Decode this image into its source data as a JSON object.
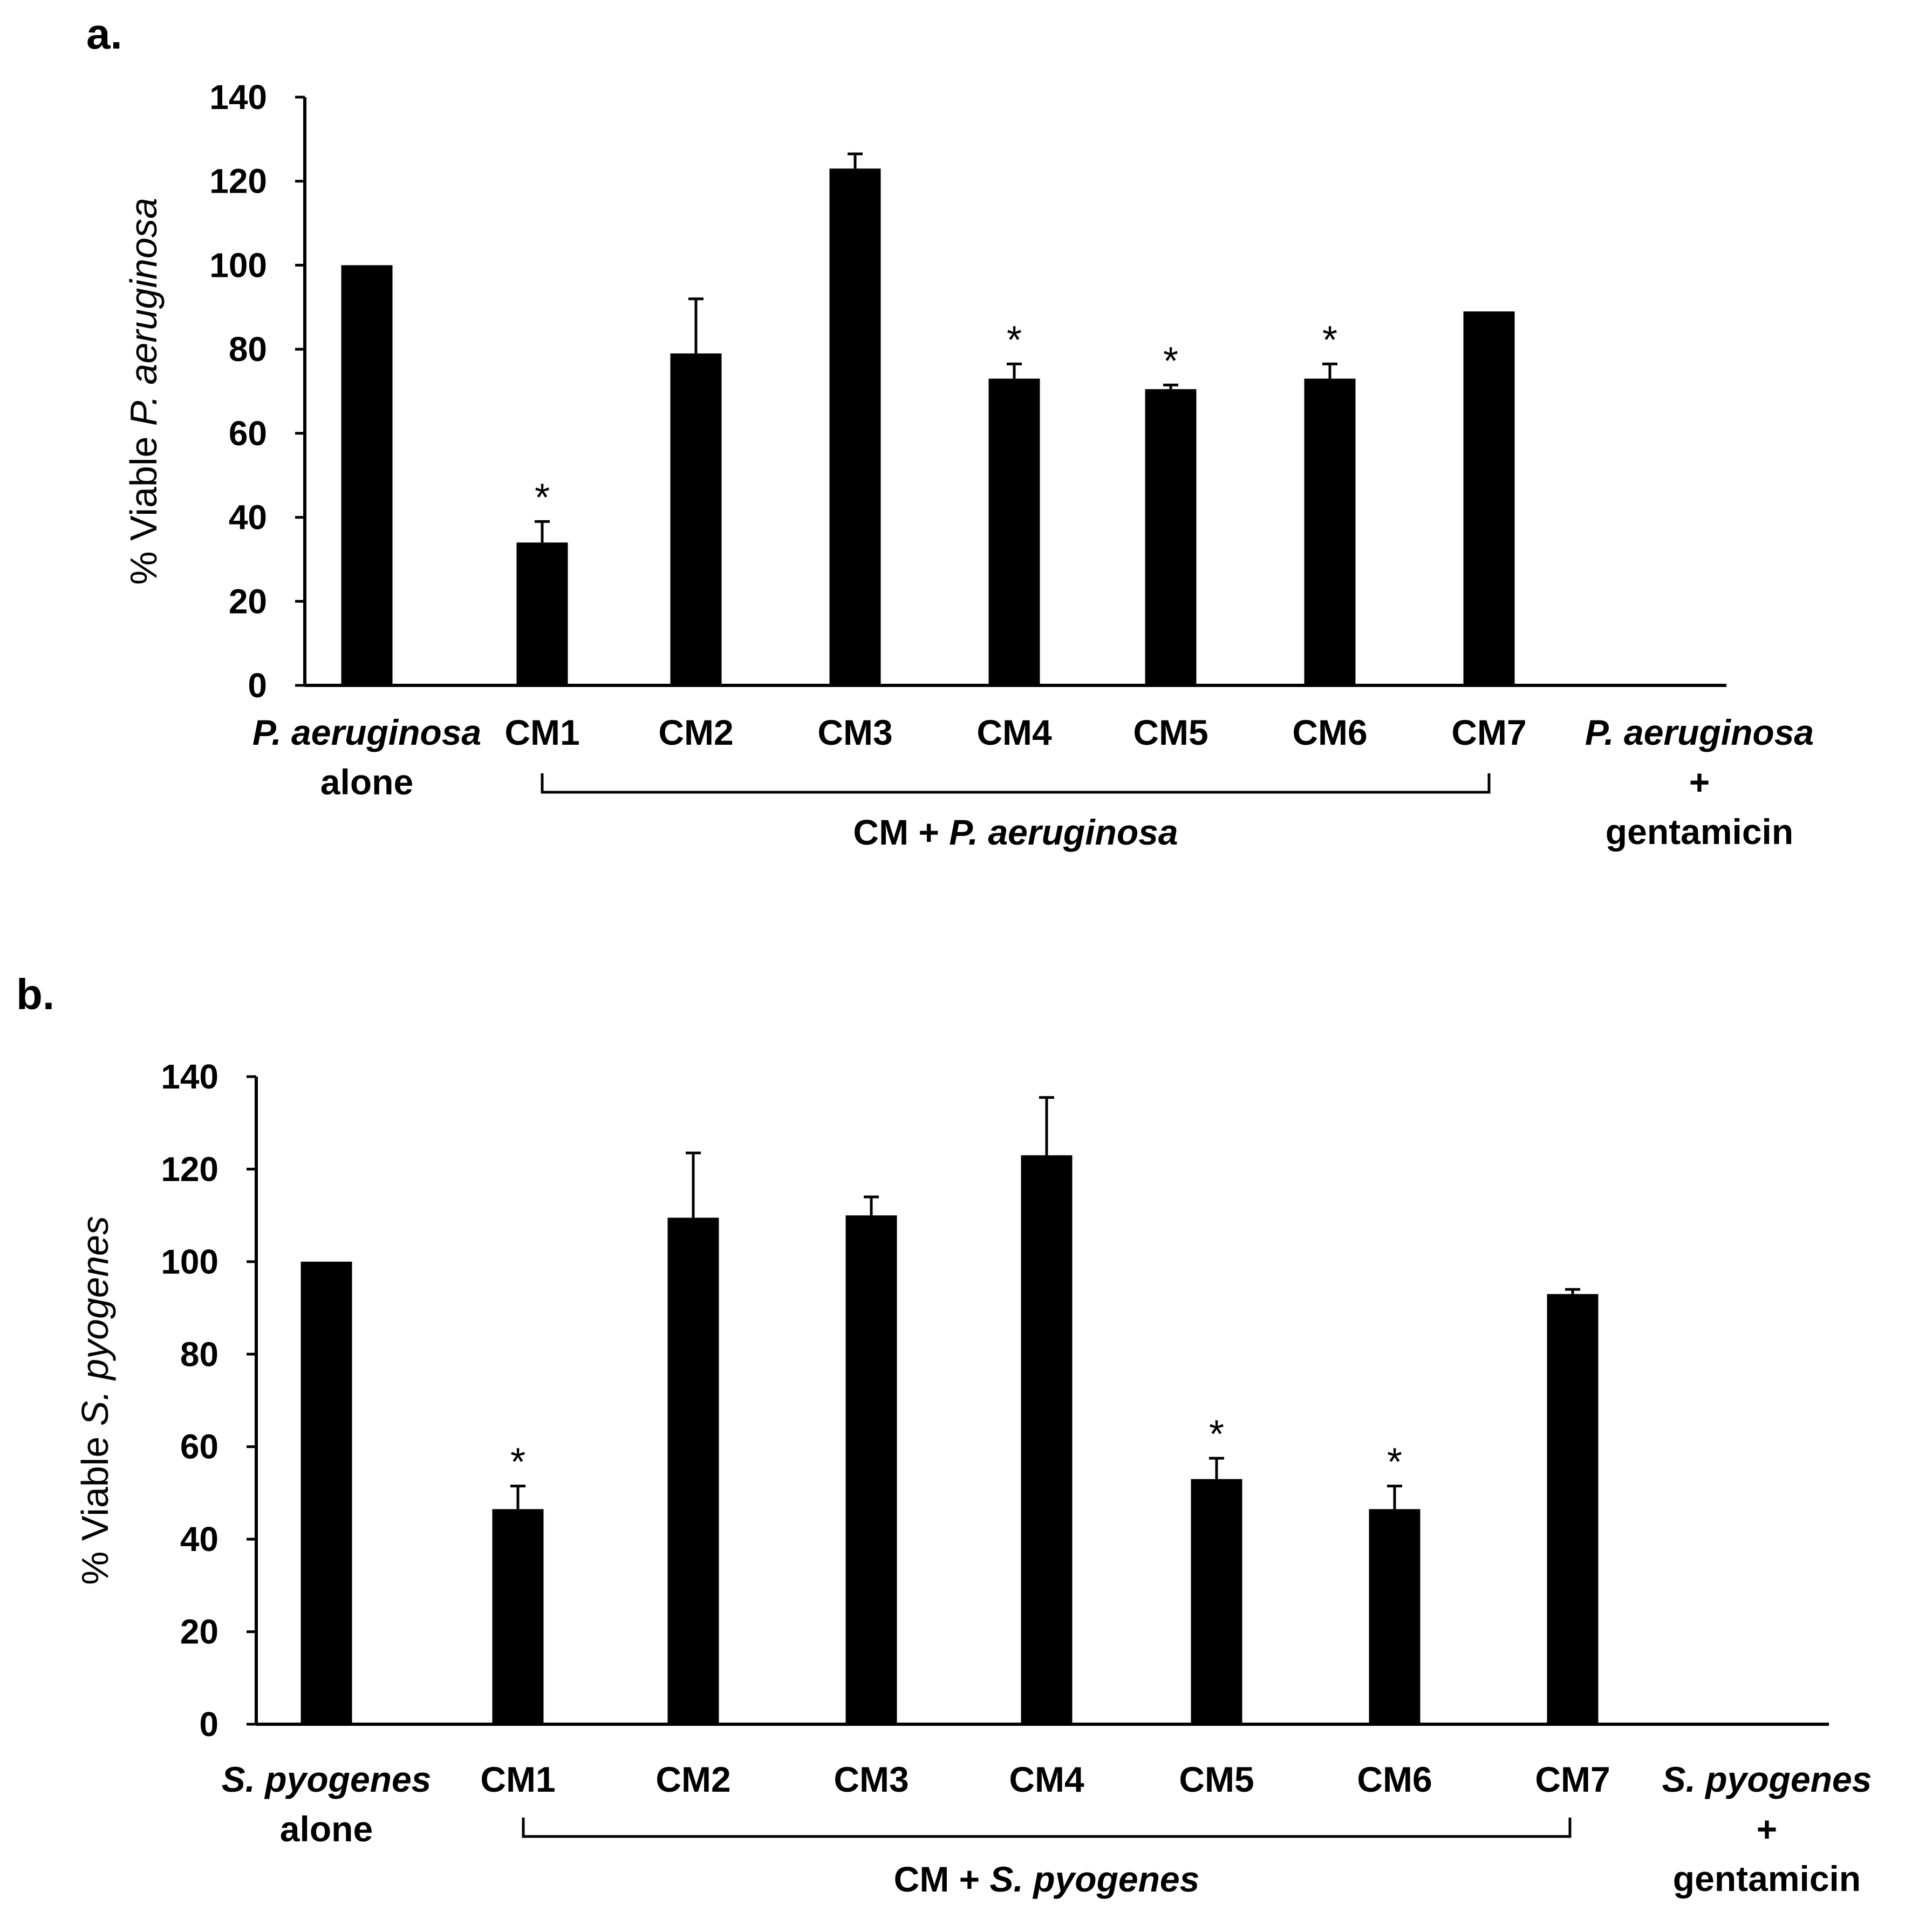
{
  "chart_data": [
    {
      "type": "bar",
      "panel_label": "a.",
      "ylabel_prefix": "% Viable ",
      "ylabel_italic": "P. aeruginosa",
      "ylim": [
        0,
        140
      ],
      "yticks": [
        "0",
        "20",
        "40",
        "60",
        "80",
        "100",
        "120",
        "140"
      ],
      "categories": [
        {
          "lines": [
            {
              "text": "P. aeruginosa",
              "italic": true
            },
            {
              "text": "alone",
              "italic": false
            }
          ]
        },
        {
          "lines": [
            {
              "text": "CM1",
              "italic": false
            }
          ]
        },
        {
          "lines": [
            {
              "text": "CM2",
              "italic": false
            }
          ]
        },
        {
          "lines": [
            {
              "text": "CM3",
              "italic": false
            }
          ]
        },
        {
          "lines": [
            {
              "text": "CM4",
              "italic": false
            }
          ]
        },
        {
          "lines": [
            {
              "text": "CM5",
              "italic": false
            }
          ]
        },
        {
          "lines": [
            {
              "text": "CM6",
              "italic": false
            }
          ]
        },
        {
          "lines": [
            {
              "text": "CM7",
              "italic": false
            }
          ]
        },
        {
          "lines": [
            {
              "text": "P. aeruginosa",
              "italic": true
            },
            {
              "text": "+",
              "italic": false
            },
            {
              "text": "gentamicin",
              "italic": false
            }
          ]
        }
      ],
      "values": [
        100,
        34,
        79,
        123,
        73,
        70.5,
        73,
        89,
        0
      ],
      "errors": [
        0,
        5,
        13,
        3.5,
        3.5,
        1,
        3.5,
        0,
        0
      ],
      "significant": [
        false,
        true,
        false,
        false,
        true,
        true,
        true,
        false,
        false
      ],
      "significance_marker": "*",
      "group_label_plain": "CM + ",
      "group_label_italic": "P. aeruginosa",
      "group_span": [
        1,
        7
      ]
    },
    {
      "type": "bar",
      "panel_label": "b.",
      "ylabel_prefix": "% Viable ",
      "ylabel_italic": "S. pyogenes",
      "ylim": [
        0,
        140
      ],
      "yticks": [
        "0",
        "20",
        "40",
        "60",
        "80",
        "100",
        "120",
        "140"
      ],
      "categories": [
        {
          "lines": [
            {
              "text": "S. pyogenes",
              "italic": true
            },
            {
              "text": "alone",
              "italic": false
            }
          ]
        },
        {
          "lines": [
            {
              "text": "CM1",
              "italic": false
            }
          ]
        },
        {
          "lines": [
            {
              "text": "CM2",
              "italic": false
            }
          ]
        },
        {
          "lines": [
            {
              "text": "CM3",
              "italic": false
            }
          ]
        },
        {
          "lines": [
            {
              "text": "CM4",
              "italic": false
            }
          ]
        },
        {
          "lines": [
            {
              "text": "CM5",
              "italic": false
            }
          ]
        },
        {
          "lines": [
            {
              "text": "CM6",
              "italic": false
            }
          ]
        },
        {
          "lines": [
            {
              "text": "CM7",
              "italic": false
            }
          ]
        },
        {
          "lines": [
            {
              "text": "S. pyogenes",
              "italic": true
            },
            {
              "text": "+",
              "italic": false
            },
            {
              "text": "gentamicin",
              "italic": false
            }
          ]
        }
      ],
      "values": [
        100,
        46.5,
        109.5,
        110,
        123,
        53,
        46.5,
        93,
        0
      ],
      "errors": [
        0,
        5,
        14,
        4,
        12.5,
        4.5,
        5,
        1,
        0
      ],
      "significant": [
        false,
        true,
        false,
        false,
        false,
        true,
        true,
        false,
        false
      ],
      "significance_marker": "*",
      "group_label_plain": "CM + ",
      "group_label_italic": "S. pyogenes",
      "group_span": [
        1,
        7
      ]
    }
  ]
}
